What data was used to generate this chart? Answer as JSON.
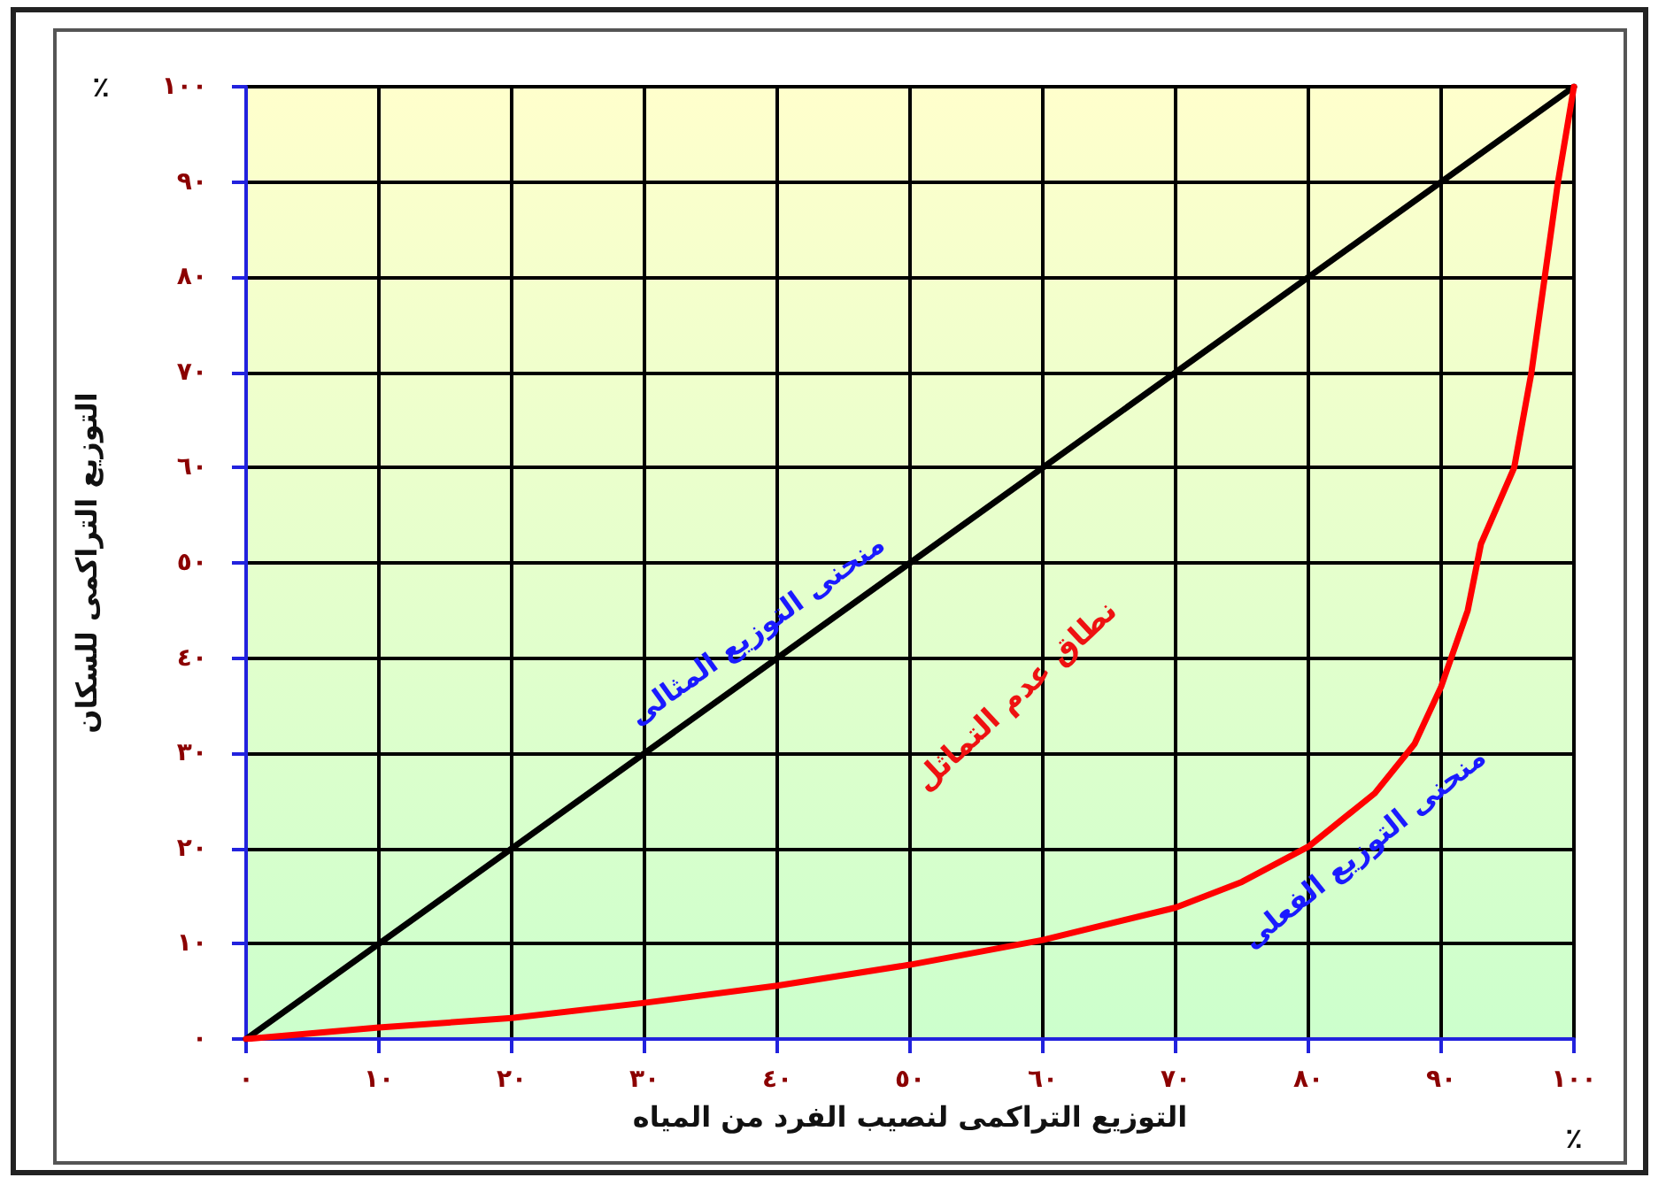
{
  "chart_data": {
    "type": "line",
    "xlabel": "التوزيع التراكمى لنصيب الفرد من المياه",
    "ylabel": "التوزيع التراكمى للسكان",
    "series": [
      {
        "name": "منحنى التوزيع المثالى",
        "color": "#000000",
        "x": [
          0,
          100
        ],
        "values": [
          0,
          100
        ]
      },
      {
        "name": "منحنى التوزيع الفعلى",
        "color": "#ff0000",
        "x": [
          0,
          10,
          20,
          30,
          40,
          50,
          60,
          70,
          75,
          80,
          85,
          88,
          90,
          92,
          93,
          95.5,
          96.8,
          97.8,
          98.8,
          100
        ],
        "values": [
          0,
          1.2,
          2.2,
          3.8,
          5.6,
          7.8,
          10.4,
          13.8,
          16.5,
          20.2,
          25.8,
          31,
          37,
          45,
          52,
          60,
          70,
          80,
          90,
          100
        ]
      }
    ],
    "annotations": [
      "نطاق عدم التماثل",
      "٪",
      "٪"
    ],
    "xlim": [
      0,
      100
    ],
    "ylim": [
      0,
      100
    ],
    "xticks": [
      {
        "value": 0,
        "label": "٠"
      },
      {
        "value": 10,
        "label": "١٠"
      },
      {
        "value": 20,
        "label": "٢٠"
      },
      {
        "value": 30,
        "label": "٣٠"
      },
      {
        "value": 40,
        "label": "٤٠"
      },
      {
        "value": 50,
        "label": "٥٠"
      },
      {
        "value": 60,
        "label": "٦٠"
      },
      {
        "value": 70,
        "label": "٧٠"
      },
      {
        "value": 80,
        "label": "٨٠"
      },
      {
        "value": 90,
        "label": "٩٠"
      },
      {
        "value": 100,
        "label": "١٠٠"
      }
    ],
    "yticks": [
      {
        "value": 0,
        "label": "٠"
      },
      {
        "value": 10,
        "label": "١٠"
      },
      {
        "value": 20,
        "label": "٢٠"
      },
      {
        "value": 30,
        "label": "٣٠"
      },
      {
        "value": 40,
        "label": "٤٠"
      },
      {
        "value": 50,
        "label": "٥٠"
      },
      {
        "value": 60,
        "label": "٦٠"
      },
      {
        "value": 70,
        "label": "٧٠"
      },
      {
        "value": 80,
        "label": "٨٠"
      },
      {
        "value": 90,
        "label": "٩٠"
      },
      {
        "value": 100,
        "label": "١٠٠"
      }
    ],
    "grid": true,
    "legend": false,
    "marker": "none",
    "line_style": "solid"
  }
}
